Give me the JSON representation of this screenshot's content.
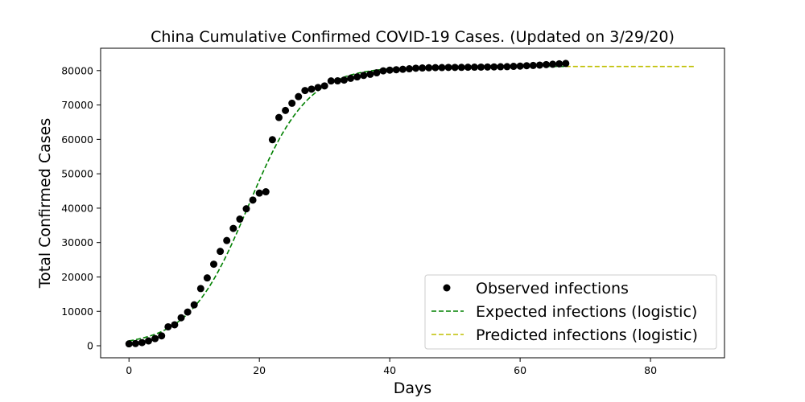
{
  "chart_data": {
    "type": "scatter",
    "title": "China Cumulative Confirmed COVID-19 Cases. (Updated on 3/29/20)",
    "xlabel": "Days",
    "ylabel": "Total Confirmed Cases",
    "xlim": [
      -4.35,
      91.35
    ],
    "ylim": [
      -3500,
      86500
    ],
    "xticks": [
      0,
      20,
      40,
      60,
      80
    ],
    "yticks": [
      0,
      10000,
      20000,
      30000,
      40000,
      50000,
      60000,
      70000,
      80000
    ],
    "grid": false,
    "legend_position": "lower-right",
    "series": [
      {
        "name": "Observed infections",
        "kind": "scatter",
        "color": "#000000",
        "x": [
          0,
          1,
          2,
          3,
          4,
          5,
          6,
          7,
          8,
          9,
          10,
          11,
          12,
          13,
          14,
          15,
          16,
          17,
          18,
          19,
          20,
          21,
          22,
          23,
          24,
          25,
          26,
          27,
          28,
          29,
          30,
          31,
          32,
          33,
          34,
          35,
          36,
          37,
          38,
          39,
          40,
          41,
          42,
          43,
          44,
          45,
          46,
          47,
          48,
          49,
          50,
          51,
          52,
          53,
          54,
          55,
          56,
          57,
          58,
          59,
          60,
          61,
          62,
          63,
          64,
          65,
          66,
          67
        ],
        "y": [
          548,
          643,
          920,
          1406,
          2075,
          2877,
          5509,
          6087,
          8141,
          9802,
          11891,
          16630,
          19716,
          23707,
          27440,
          30587,
          34110,
          36814,
          39829,
          42354,
          44386,
          44759,
          59895,
          66358,
          68413,
          70513,
          72434,
          74211,
          74619,
          75077,
          75550,
          77001,
          77022,
          77241,
          77754,
          78166,
          78600,
          78928,
          79356,
          79932,
          80136,
          80261,
          80386,
          80537,
          80690,
          80770,
          80823,
          80860,
          80887,
          80921,
          80932,
          80945,
          80977,
          81003,
          81021,
          81048,
          81077,
          81116,
          81151,
          81235,
          81300,
          81416,
          81498,
          81600,
          81747,
          81846,
          81960,
          82078
        ]
      },
      {
        "name": "Expected infections (logistic)",
        "kind": "line",
        "dash": "dashed",
        "color": "#008000",
        "logistic": {
          "K": 81200,
          "r": 0.22,
          "x0": 18.3
        },
        "x_range": [
          0,
          67
        ]
      },
      {
        "name": "Predicted infections (logistic)",
        "kind": "line",
        "dash": "dashed",
        "color": "#bfbf00",
        "logistic": {
          "K": 81200,
          "r": 0.22,
          "x0": 18.3
        },
        "x_range": [
          67,
          87
        ]
      }
    ]
  }
}
